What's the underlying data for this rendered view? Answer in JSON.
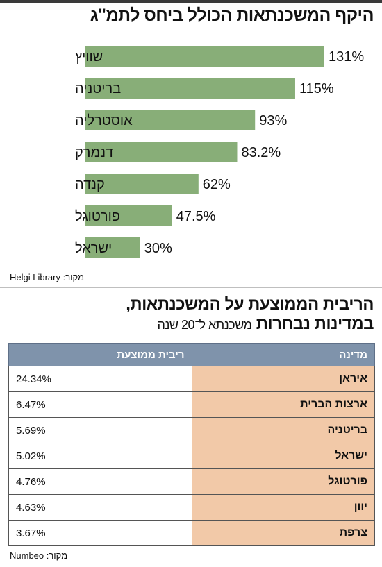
{
  "chart1_title": "היקף המשכנתאות הכולל ביחס לתמ\"ג",
  "chart_data": [
    {
      "type": "bar",
      "orientation": "horizontal",
      "title": "היקף המשכנתאות הכולל ביחס לתמ\"ג",
      "categories": [
        "שוויץ",
        "בריטניה",
        "אוסטרליה",
        "דנמרק",
        "קנדה",
        "פורטוגל",
        "ישראל"
      ],
      "values": [
        131,
        115,
        93,
        83.2,
        62,
        47.5,
        30
      ],
      "data_labels": [
        "131%",
        "115%",
        "93%",
        "83.2%",
        "62%",
        "47.5%",
        "30%"
      ],
      "color": "#88ae78",
      "xlim": [
        0,
        131
      ],
      "grid": false,
      "source": "מקור: Helgi Library"
    },
    {
      "type": "table",
      "title": "הריבית הממוצעת על המשכנתאות, במדינות נבחרות",
      "subtitle": "משכנתא ל־20 שנה",
      "columns": [
        "מדינה",
        "ריבית ממוצעת"
      ],
      "rows": [
        [
          "איראן",
          "24.34%"
        ],
        [
          "ארצות הברית",
          "6.47%"
        ],
        [
          "בריטניה",
          "5.69%"
        ],
        [
          "ישראל",
          "5.02%"
        ],
        [
          "פורטוגל",
          "4.76%"
        ],
        [
          "יוון",
          "4.63%"
        ],
        [
          "צרפת",
          "3.67%"
        ]
      ],
      "source": "מקור: Numbeo"
    }
  ],
  "chart2_title_line1": "הריבית הממוצעת על המשכנתאות,",
  "chart2_title_line2": "במדינות נבחרות",
  "chart2_subtitle": "משכנתא ל־20 שנה",
  "table_headers": {
    "country": "מדינה",
    "rate": "ריבית ממוצעת"
  },
  "source1": "מקור: Helgi Library",
  "source2": "מקור: Numbeo"
}
